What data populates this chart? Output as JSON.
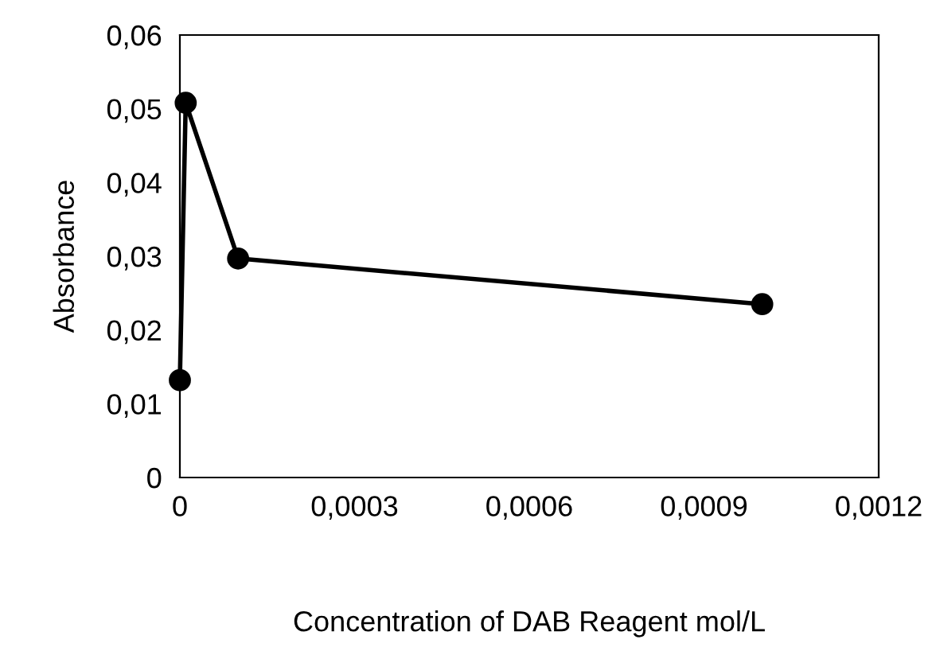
{
  "chart_data": {
    "type": "line",
    "xlabel": "Concentration of DAB Reagent mol/L",
    "ylabel": "Absorbance",
    "x": [
      0,
      1e-05,
      0.0001,
      0.001
    ],
    "series": [
      {
        "color": "#000000",
        "values": [
          0.0132,
          0.0508,
          0.0297,
          0.0235
        ]
      }
    ],
    "xlim": [
      0,
      0.0012
    ],
    "ylim": [
      0,
      0.06
    ],
    "xticks": [
      0,
      {
        "value": 0.0003,
        "label": "0,0003"
      },
      {
        "value": 0.0006,
        "label": "0,0006"
      },
      {
        "value": 0.0009,
        "label": "0,0009"
      },
      {
        "value": 0.0012,
        "label": "0,0012"
      }
    ],
    "yticks": [
      0,
      {
        "value": 0.01,
        "label": "0,01"
      },
      {
        "value": 0.02,
        "label": "0,02"
      },
      {
        "value": 0.03,
        "label": "0,03"
      },
      {
        "value": 0.04,
        "label": "0,04"
      },
      {
        "value": 0.05,
        "label": "0,05"
      },
      {
        "value": 0.06,
        "label": "0,06"
      }
    ],
    "grid": false,
    "marker": "circle",
    "line_style": "solid"
  }
}
